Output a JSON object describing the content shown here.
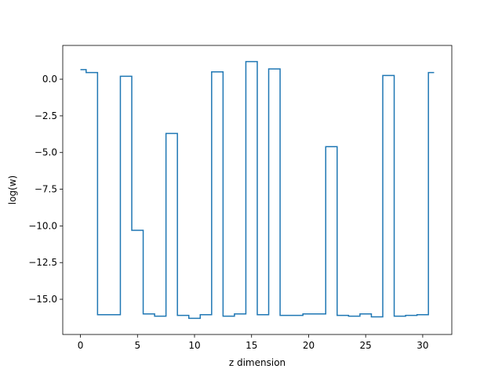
{
  "chart_data": {
    "type": "line",
    "drawstyle": "steps-mid",
    "title": "",
    "xlabel": "z dimension",
    "ylabel": "log(w)",
    "xlim": [
      -1.55,
      32.55
    ],
    "ylim": [
      -17.4,
      2.3
    ],
    "xticks": [
      0,
      5,
      10,
      15,
      20,
      25,
      30
    ],
    "yticks": [
      0.0,
      -2.5,
      -5.0,
      -7.5,
      -10.0,
      -12.5,
      -15.0
    ],
    "xtick_labels": [
      "0",
      "5",
      "10",
      "15",
      "20",
      "25",
      "30"
    ],
    "ytick_labels": [
      "0.0",
      "−2.5",
      "−5.0",
      "−7.5",
      "−10.0",
      "−12.5",
      "−15.0"
    ],
    "grid": false,
    "legend": "none",
    "line_color": "#1f77b4",
    "series": [
      {
        "x": [
          0,
          1,
          2,
          3,
          4,
          5,
          6,
          7,
          8,
          9,
          10,
          11,
          12,
          13,
          14,
          15,
          16,
          17,
          18,
          19,
          20,
          21,
          22,
          23,
          24,
          25,
          26,
          27,
          28,
          29,
          30,
          31
        ],
        "values": [
          0.65,
          0.45,
          -16.05,
          -16.05,
          0.2,
          -10.3,
          -16.0,
          -16.15,
          -3.7,
          -16.1,
          -16.3,
          -16.05,
          0.5,
          -16.15,
          -16.0,
          1.2,
          -16.05,
          0.7,
          -16.1,
          -16.1,
          -16.0,
          -16.0,
          -4.6,
          -16.1,
          -16.15,
          -16.0,
          -16.2,
          0.25,
          -16.15,
          -16.1,
          -16.05,
          0.45
        ]
      }
    ]
  }
}
